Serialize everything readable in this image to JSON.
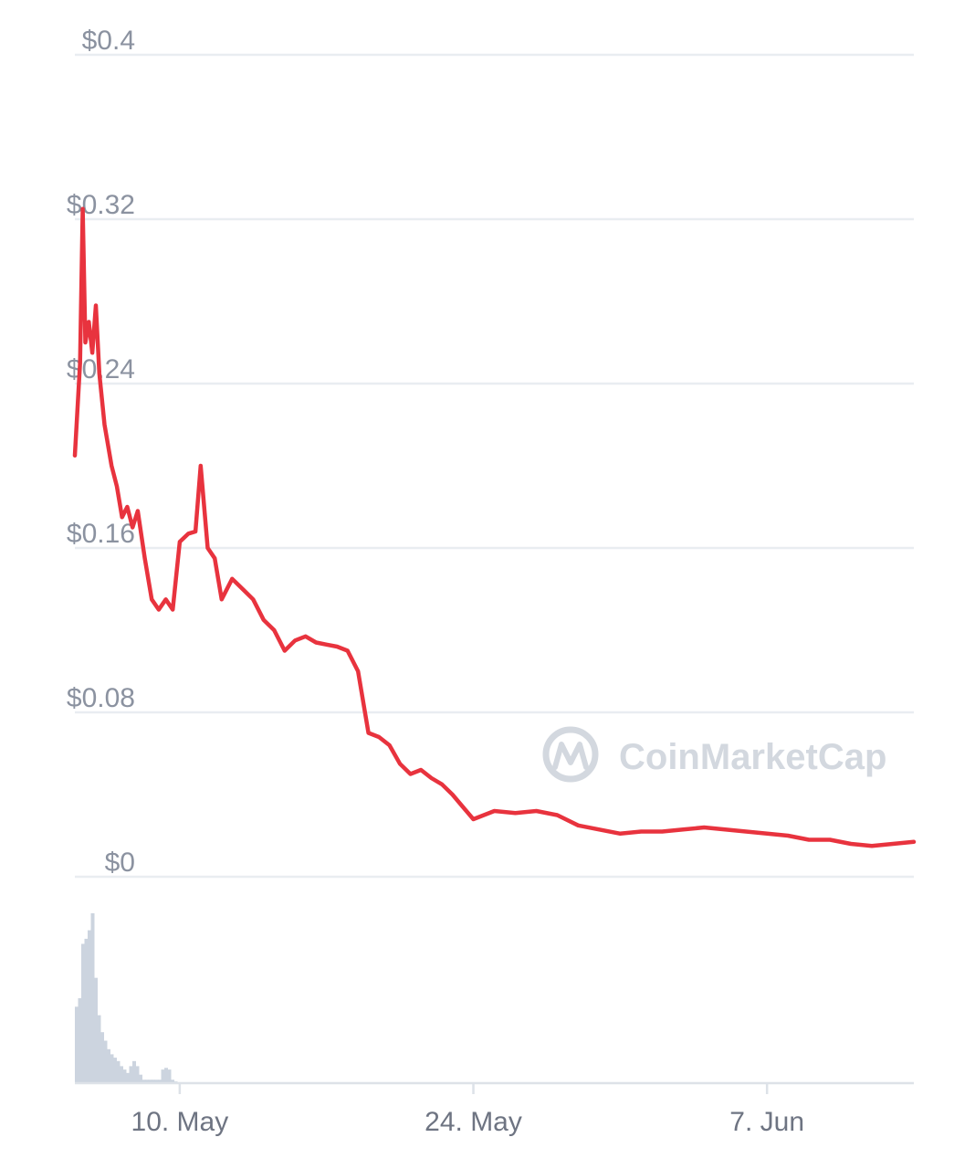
{
  "chart_data": {
    "type": "line",
    "title": "",
    "watermark": "CoinMarketCap",
    "colors": {
      "price_line": "#e8333e",
      "volume_fill": "#ccd4df",
      "grid": "#e9edf1",
      "axis": "#dde2e8"
    },
    "y_axis": {
      "min": 0,
      "max": 0.4,
      "ticks": [
        0,
        0.08,
        0.16,
        0.24,
        0.32,
        0.4
      ],
      "tick_labels": [
        "$0",
        "$0.08",
        "$0.16",
        "$0.24",
        "$0.32",
        "$0.4"
      ]
    },
    "x_axis": {
      "start": "2021-05-05",
      "end": "2021-06-14",
      "ticks": [
        "2021-05-10",
        "2021-05-24",
        "2021-06-07"
      ],
      "tick_labels": [
        "10. May",
        "24. May",
        "7. Jun"
      ]
    },
    "series": [
      {
        "kind": "price",
        "points": [
          [
            "2021-05-05",
            0.205
          ],
          [
            "2021-05-05T06",
            0.25
          ],
          [
            "2021-05-05T09",
            0.325
          ],
          [
            "2021-05-05T12",
            0.26
          ],
          [
            "2021-05-05T16",
            0.27
          ],
          [
            "2021-05-05T20",
            0.255
          ],
          [
            "2021-05-06",
            0.278
          ],
          [
            "2021-05-06T04",
            0.245
          ],
          [
            "2021-05-06T10",
            0.22
          ],
          [
            "2021-05-06T18",
            0.2
          ],
          [
            "2021-05-07",
            0.19
          ],
          [
            "2021-05-07T06",
            0.175
          ],
          [
            "2021-05-07T12",
            0.18
          ],
          [
            "2021-05-07T18",
            0.17
          ],
          [
            "2021-05-08",
            0.178
          ],
          [
            "2021-05-08T08",
            0.155
          ],
          [
            "2021-05-08T16",
            0.135
          ],
          [
            "2021-05-09",
            0.13
          ],
          [
            "2021-05-09T08",
            0.135
          ],
          [
            "2021-05-09T16",
            0.13
          ],
          [
            "2021-05-10",
            0.163
          ],
          [
            "2021-05-10T10",
            0.167
          ],
          [
            "2021-05-10T18",
            0.168
          ],
          [
            "2021-05-11",
            0.2
          ],
          [
            "2021-05-11T08",
            0.16
          ],
          [
            "2021-05-11T16",
            0.155
          ],
          [
            "2021-05-12",
            0.135
          ],
          [
            "2021-05-12T12",
            0.145
          ],
          [
            "2021-05-13",
            0.14
          ],
          [
            "2021-05-13T12",
            0.135
          ],
          [
            "2021-05-14",
            0.125
          ],
          [
            "2021-05-14T12",
            0.12
          ],
          [
            "2021-05-15",
            0.11
          ],
          [
            "2021-05-15T12",
            0.115
          ],
          [
            "2021-05-16",
            0.117
          ],
          [
            "2021-05-16T12",
            0.114
          ],
          [
            "2021-05-17",
            0.113
          ],
          [
            "2021-05-17T12",
            0.112
          ],
          [
            "2021-05-18",
            0.11
          ],
          [
            "2021-05-18T12",
            0.1
          ],
          [
            "2021-05-19",
            0.07
          ],
          [
            "2021-05-19T12",
            0.068
          ],
          [
            "2021-05-20",
            0.064
          ],
          [
            "2021-05-20T12",
            0.055
          ],
          [
            "2021-05-21",
            0.05
          ],
          [
            "2021-05-21T12",
            0.052
          ],
          [
            "2021-05-22",
            0.048
          ],
          [
            "2021-05-22T12",
            0.045
          ],
          [
            "2021-05-23",
            0.04
          ],
          [
            "2021-05-23T12",
            0.034
          ],
          [
            "2021-05-24",
            0.028
          ],
          [
            "2021-05-24T12",
            0.03
          ],
          [
            "2021-05-25",
            0.032
          ],
          [
            "2021-05-26",
            0.031
          ],
          [
            "2021-05-27",
            0.032
          ],
          [
            "2021-05-28",
            0.03
          ],
          [
            "2021-05-29",
            0.025
          ],
          [
            "2021-05-30",
            0.023
          ],
          [
            "2021-05-31",
            0.021
          ],
          [
            "2021-06-01",
            0.022
          ],
          [
            "2021-06-02",
            0.022
          ],
          [
            "2021-06-03",
            0.023
          ],
          [
            "2021-06-04",
            0.024
          ],
          [
            "2021-06-05",
            0.023
          ],
          [
            "2021-06-06",
            0.022
          ],
          [
            "2021-06-07",
            0.021
          ],
          [
            "2021-06-08",
            0.02
          ],
          [
            "2021-06-09",
            0.018
          ],
          [
            "2021-06-10",
            0.018
          ],
          [
            "2021-06-11",
            0.016
          ],
          [
            "2021-06-12",
            0.015
          ],
          [
            "2021-06-13",
            0.016
          ],
          [
            "2021-06-14",
            0.017
          ]
        ]
      },
      {
        "kind": "volume",
        "relative_values": [
          0.45,
          0.5,
          0.82,
          0.85,
          0.9,
          1.0,
          0.62,
          0.4,
          0.3,
          0.25,
          0.2,
          0.17,
          0.15,
          0.13,
          0.1,
          0.08,
          0.06,
          0.1,
          0.13,
          0.1,
          0.05,
          0.02,
          0.02,
          0.02,
          0.02,
          0.02,
          0.02,
          0.08,
          0.09,
          0.08,
          0.02,
          0.01,
          0,
          0,
          0,
          0,
          0,
          0,
          0,
          0,
          0,
          0,
          0,
          0,
          0,
          0,
          0,
          0,
          0,
          0,
          0,
          0,
          0,
          0,
          0,
          0,
          0,
          0,
          0,
          0
        ]
      }
    ]
  }
}
